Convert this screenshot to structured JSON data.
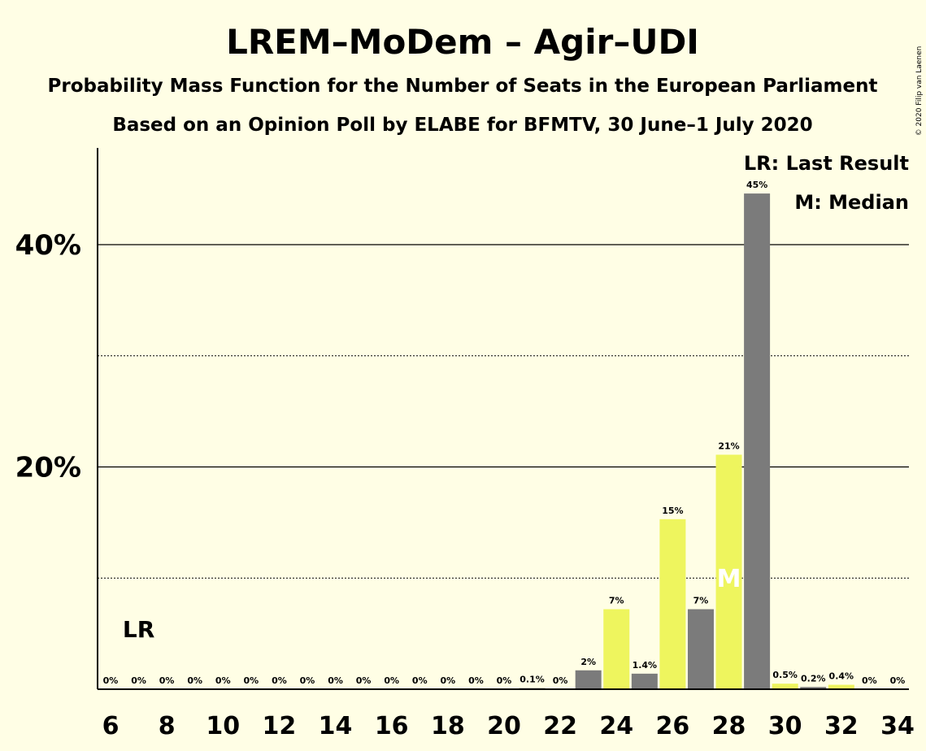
{
  "colors": {
    "background": "#FFFEE5",
    "bar_primary": "#EEF55E",
    "bar_secondary": "#7B7B7B",
    "axis": "#000000"
  },
  "copyright": "© 2020 Filip van Laenen",
  "chart_data": {
    "type": "bar",
    "title": "LREM–MoDem – Agir–UDI",
    "subtitle": "Probability Mass Function for the Number of Seats in the European Parliament",
    "subtitle2": "Based on an Opinion Poll by ELABE for BFMTV, 30 June–1 July 2020",
    "xlabel": "",
    "ylabel": "",
    "ylim": [
      0,
      48.5
    ],
    "y_ticks": [
      {
        "value": 20,
        "label": "20%"
      },
      {
        "value": 40,
        "label": "40%"
      }
    ],
    "grid": {
      "solid": [
        20,
        40
      ],
      "dotted": [
        10,
        30
      ]
    },
    "x_ticks": [
      "6",
      "8",
      "10",
      "12",
      "14",
      "16",
      "18",
      "20",
      "22",
      "24",
      "26",
      "28",
      "30",
      "32",
      "34"
    ],
    "categories": [
      6,
      7,
      8,
      9,
      10,
      11,
      12,
      13,
      14,
      15,
      16,
      17,
      18,
      19,
      20,
      21,
      22,
      23,
      24,
      25,
      26,
      27,
      28,
      29,
      30,
      31,
      32,
      33,
      34
    ],
    "values": [
      0,
      0,
      0,
      0,
      0,
      0,
      0,
      0,
      0,
      0,
      0,
      0,
      0,
      0,
      0,
      0.1,
      0,
      1.7,
      7.2,
      1.4,
      15.3,
      7.2,
      21.1,
      44.6,
      0.5,
      0.2,
      0.4,
      0,
      0
    ],
    "labels": [
      "0%",
      "0%",
      "0%",
      "0%",
      "0%",
      "0%",
      "0%",
      "0%",
      "0%",
      "0%",
      "0%",
      "0%",
      "0%",
      "0%",
      "0%",
      "0.1%",
      "0%",
      "2%",
      "7%",
      "1.4%",
      "15%",
      "7%",
      "21%",
      "45%",
      "0.5%",
      "0.2%",
      "0.4%",
      "0%",
      "0%"
    ],
    "bar_colors": [
      "#EEF55E",
      "#7B7B7B",
      "#EEF55E",
      "#7B7B7B",
      "#EEF55E",
      "#7B7B7B",
      "#EEF55E",
      "#7B7B7B",
      "#EEF55E",
      "#7B7B7B",
      "#EEF55E",
      "#7B7B7B",
      "#EEF55E",
      "#7B7B7B",
      "#EEF55E",
      "#7B7B7B",
      "#EEF55E",
      "#7B7B7B",
      "#EEF55E",
      "#7B7B7B",
      "#EEF55E",
      "#7B7B7B",
      "#EEF55E",
      "#7B7B7B",
      "#EEF55E",
      "#7B7B7B",
      "#EEF55E",
      "#7B7B7B",
      "#EEF55E"
    ],
    "last_result": {
      "seats": 7,
      "label": "LR"
    },
    "median": {
      "seats": 28,
      "label": "M"
    },
    "legend": [
      "LR: Last Result",
      "M: Median"
    ],
    "legend_position": "top-right"
  }
}
